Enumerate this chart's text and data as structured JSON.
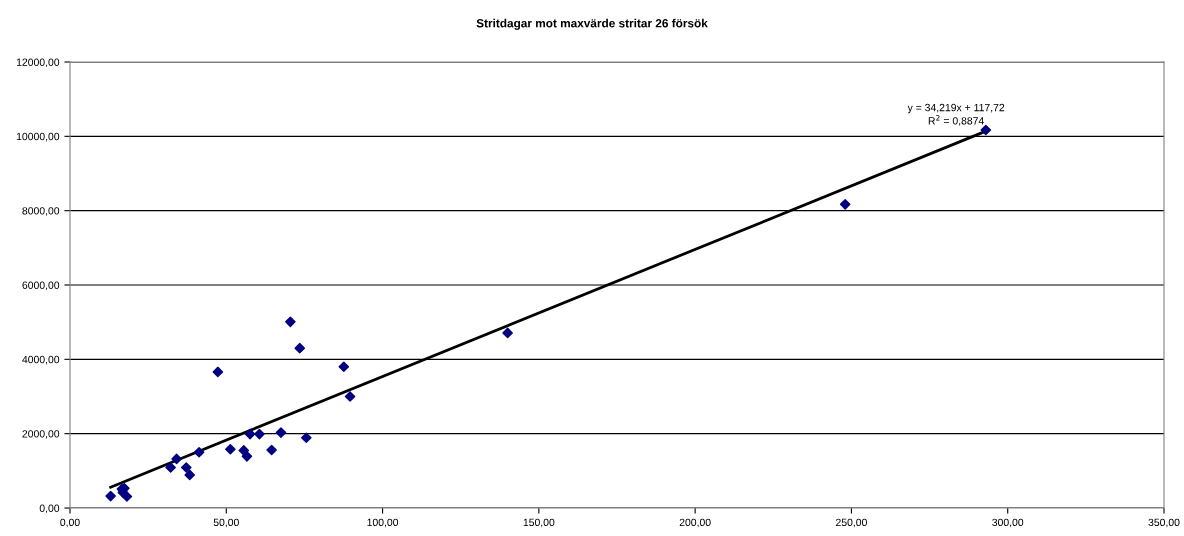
{
  "chart_data": {
    "type": "scatter",
    "title": "Stritdagar mot maxvärde stritar 26 försök",
    "series": [
      {
        "color": "#000080",
        "marker": "diamond",
        "x": [
          13,
          16.6,
          17.4,
          16.9,
          18.2,
          32.2,
          34.1,
          37.2,
          38.3,
          41.3,
          47.3,
          51.3,
          55.6,
          56.6,
          57.6,
          60.6,
          64.5,
          67.5,
          70.5,
          73.5,
          75.6,
          87.6,
          89.6,
          140,
          248,
          293
        ],
        "values": [
          320,
          510,
          530,
          420,
          310,
          1090,
          1320,
          1090,
          890,
          1500,
          3660,
          1580,
          1550,
          1390,
          1990,
          1990,
          1560,
          2030,
          5010,
          4300,
          1890,
          3800,
          3000,
          4710,
          8170,
          10170
        ]
      },
      {
        "type": "line",
        "color": "#000000",
        "marker": "none",
        "x": [
          13,
          293
        ],
        "values": [
          560,
          10140
        ]
      }
    ],
    "annotations": [
      "y = 34,219x + 117,72",
      "R$^{2}$ = 0,8874"
    ],
    "xlim": [
      0,
      350
    ],
    "xticks": [
      {
        "value": 0,
        "label": "0,00"
      },
      {
        "value": 50,
        "label": "50,00"
      },
      {
        "value": 100,
        "label": "100,00"
      },
      {
        "value": 150,
        "label": "150,00"
      },
      {
        "value": 200,
        "label": "200,00"
      },
      {
        "value": 250,
        "label": "250,00"
      },
      {
        "value": 300,
        "label": "300,00"
      },
      {
        "value": 350,
        "label": "350,00"
      }
    ],
    "ylim": [
      0,
      12000
    ],
    "yticks": [
      {
        "value": 0,
        "label": "0,00"
      },
      {
        "value": 2000,
        "label": "2000,00"
      },
      {
        "value": 4000,
        "label": "4000,00"
      },
      {
        "value": 6000,
        "label": "6000,00"
      },
      {
        "value": 8000,
        "label": "8000,00"
      },
      {
        "value": 10000,
        "label": "10000,00"
      },
      {
        "value": 12000,
        "label": "12000,00"
      }
    ],
    "grid": "y",
    "legend": false
  }
}
